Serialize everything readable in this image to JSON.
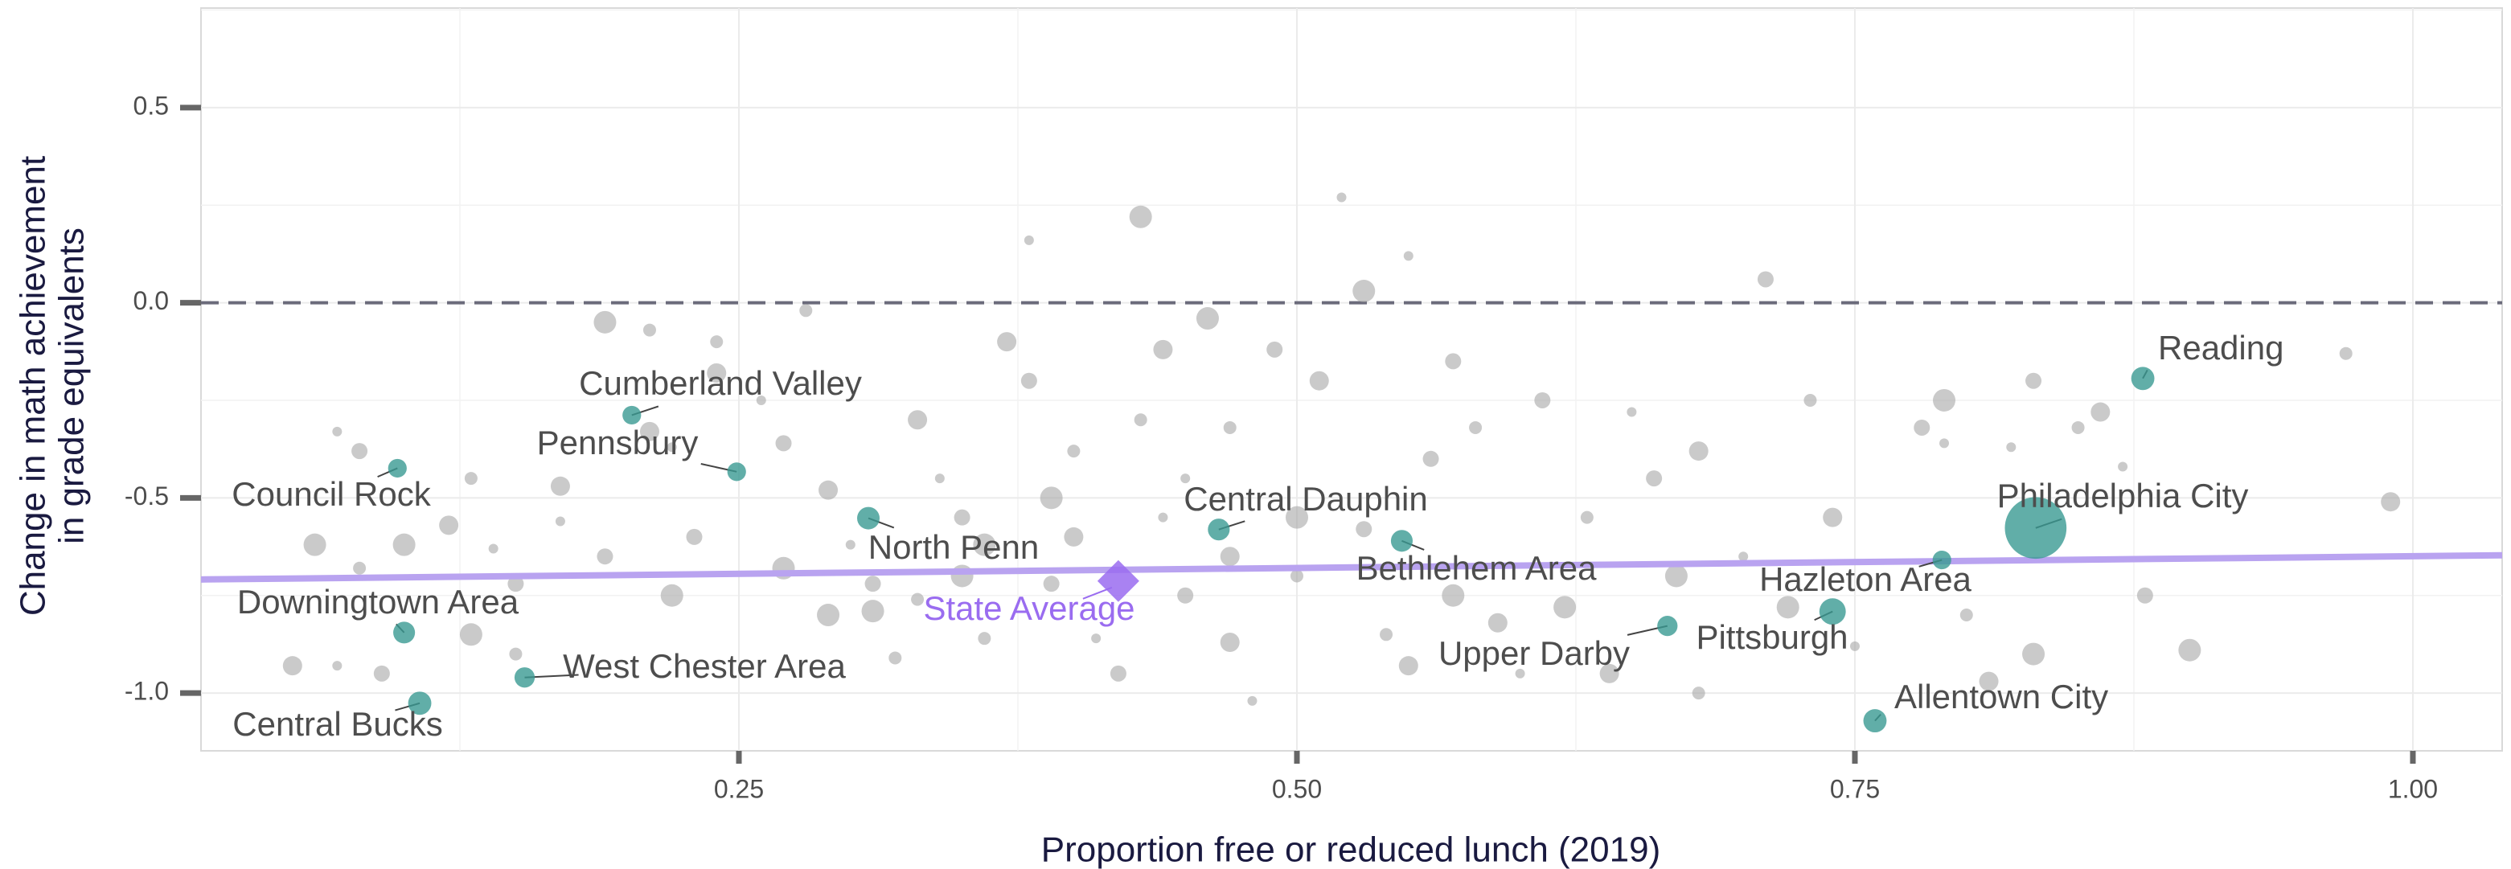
{
  "chart_data": {
    "type": "scatter",
    "xlabel": "Proportion free or reduced lunch (2019)",
    "ylabel": [
      "Change in math achievement",
      "in grade equivalents"
    ],
    "xlim": [
      0.009,
      1.04
    ],
    "ylim": [
      -1.148,
      0.755
    ],
    "xticks": [
      0.25,
      {
        "value": 0.5,
        "label": "0.50"
      },
      0.75,
      {
        "value": 1.0,
        "label": "1.00"
      }
    ],
    "yticks": [
      {
        "value": 0.5,
        "label": "0.5"
      },
      {
        "value": 0.0,
        "label": "0.0"
      },
      -0.5,
      {
        "value": -1.0,
        "label": "-1.0"
      }
    ],
    "grid": true,
    "hline": 0,
    "trend": {
      "x": [
        0.009,
        1.04
      ],
      "y": [
        -0.709,
        -0.647
      ],
      "color": "#b9a3f0"
    },
    "points": {
      "color": "#a6a6a6",
      "x": [
        0.07,
        0.08,
        0.06,
        0.08,
        0.05,
        0.07,
        0.09,
        0.1,
        0.13,
        0.12,
        0.14,
        0.15,
        0.13,
        0.15,
        0.17,
        0.17,
        0.19,
        0.19,
        0.21,
        0.21,
        0.22,
        0.23,
        0.22,
        0.24,
        0.24,
        0.26,
        0.27,
        0.27,
        0.28,
        0.29,
        0.3,
        0.31,
        0.31,
        0.32,
        0.33,
        0.34,
        0.35,
        0.35,
        0.36,
        0.37,
        0.38,
        0.38,
        0.39,
        0.4,
        0.4,
        0.41,
        0.42,
        0.43,
        0.43,
        0.44,
        0.45,
        0.45,
        0.46,
        0.47,
        0.47,
        0.48,
        0.49,
        0.5,
        0.5,
        0.51,
        0.52,
        0.53,
        0.53,
        0.54,
        0.55,
        0.55,
        0.56,
        0.57,
        0.58,
        0.59,
        0.6,
        0.61,
        0.62,
        0.63,
        0.64,
        0.65,
        0.66,
        0.67,
        0.68,
        0.68,
        0.7,
        0.71,
        0.72,
        0.73,
        0.74,
        0.75,
        0.78,
        0.79,
        0.8,
        0.81,
        0.82,
        0.83,
        0.83,
        0.85,
        0.86,
        0.87,
        0.88,
        0.9,
        0.97,
        0.99,
        0.79,
        0.57,
        0.36,
        0.33,
        0.47,
        0.44,
        0.39,
        0.29
      ],
      "y": [
        -0.33,
        -0.38,
        -0.62,
        -0.68,
        -0.93,
        -0.93,
        -0.95,
        -0.62,
        -0.45,
        -0.57,
        -0.63,
        -0.72,
        -0.85,
        -0.9,
        -0.47,
        -0.56,
        -0.65,
        -0.05,
        -0.07,
        -0.33,
        -0.37,
        -0.6,
        -0.75,
        -0.1,
        -0.18,
        -0.25,
        -0.36,
        -0.68,
        -0.02,
        -0.48,
        -0.62,
        -0.72,
        -0.79,
        -0.91,
        -0.3,
        -0.45,
        -0.55,
        -0.7,
        -0.86,
        -0.1,
        0.16,
        -0.2,
        -0.5,
        -0.38,
        -0.6,
        -0.86,
        -0.95,
        0.22,
        -0.3,
        -0.12,
        -0.45,
        -0.75,
        -0.04,
        -0.32,
        -0.87,
        -1.02,
        -0.12,
        -0.55,
        -0.7,
        -0.2,
        0.27,
        -0.58,
        0.03,
        -0.85,
        -0.93,
        0.12,
        -0.4,
        -0.75,
        -0.32,
        -0.82,
        -0.95,
        -0.25,
        -0.78,
        -0.55,
        -0.95,
        -0.28,
        -0.45,
        -0.7,
        -1.0,
        -0.38,
        -0.65,
        0.06,
        -0.78,
        -0.25,
        -0.55,
        -0.88,
        -0.32,
        -0.25,
        -0.8,
        -0.97,
        -0.37,
        -0.2,
        -0.9,
        -0.32,
        -0.28,
        -0.42,
        -0.75,
        -0.89,
        -0.13,
        -0.51,
        -0.36,
        -0.15,
        -0.62,
        -0.76,
        -0.65,
        -0.55,
        -0.72,
        -0.8
      ]
    },
    "districts": {
      "color": "#3a9a92",
      "labels": [
        "Reading",
        "Philadelphia City",
        "Hazleton Area",
        "Allentown City",
        "Pittsburgh",
        "Upper Darby",
        "Bethlehem Area",
        "Central Dauphin",
        "North Penn",
        "Pennsbury",
        "Cumberland Valley",
        "Council Rock",
        "Downingtown Area",
        "West Chester Area",
        "Central Bucks"
      ],
      "x": [
        0.879,
        0.831,
        0.789,
        0.759,
        0.74,
        0.666,
        0.547,
        0.465,
        0.308,
        0.249,
        0.202,
        0.097,
        0.1,
        0.154,
        0.107
      ],
      "y": [
        -0.194,
        -0.577,
        -0.659,
        -1.071,
        -0.791,
        -0.828,
        -0.61,
        -0.581,
        -0.552,
        -0.433,
        -0.288,
        -0.424,
        -0.845,
        -0.96,
        -1.026
      ],
      "sizes": [
        17,
        120,
        11,
        17,
        22,
        13,
        15,
        15,
        16,
        11,
        11,
        11,
        15,
        13,
        17
      ]
    },
    "state_average": {
      "label": "State Average",
      "x": 0.42,
      "y": -0.713,
      "color": "#9a6cf0"
    }
  }
}
